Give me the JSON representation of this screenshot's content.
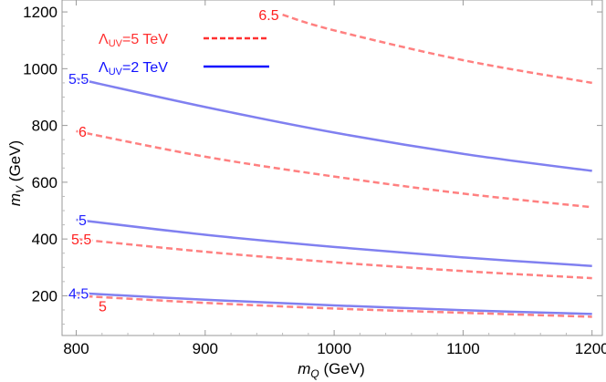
{
  "chart_data": {
    "type": "line",
    "title": "",
    "xlabel": "m_Q (GeV)",
    "ylabel": "m_V (GeV)",
    "xlim": [
      789,
      1208
    ],
    "ylim": [
      60,
      1242
    ],
    "xticks": [
      800,
      900,
      1000,
      1100,
      1200
    ],
    "yticks": [
      200,
      400,
      600,
      800,
      1000,
      1200
    ],
    "grid": false,
    "legend": {
      "placement": "top-left",
      "entries": [
        {
          "label_main": "Λ",
          "label_sub": "UV",
          "label_rest": "=5 TeV",
          "style": "dashed",
          "color": "#ff3030"
        },
        {
          "label_main": "Λ",
          "label_sub": "UV",
          "label_rest": "=2 TeV",
          "style": "solid",
          "color": "#1010ff"
        }
      ]
    },
    "series": [
      {
        "group": "Λ_UV=2 TeV",
        "contour_label": "5.5",
        "style": "solid",
        "color": "#8080f0",
        "label_color": "#2020ff",
        "x": [
          800,
          900,
          1000,
          1100,
          1200
        ],
        "y": [
          965,
          865,
          775,
          700,
          640
        ]
      },
      {
        "group": "Λ_UV=2 TeV",
        "contour_label": "5",
        "style": "solid",
        "color": "#8080f0",
        "label_color": "#2020ff",
        "x": [
          800,
          900,
          1000,
          1100,
          1200
        ],
        "y": [
          468,
          415,
          372,
          335,
          305
        ]
      },
      {
        "group": "Λ_UV=2 TeV",
        "contour_label": "4.5",
        "style": "solid",
        "color": "#8080f0",
        "label_color": "#2020ff",
        "x": [
          800,
          900,
          1000,
          1100,
          1200
        ],
        "y": [
          210,
          186,
          166,
          149,
          136
        ]
      },
      {
        "group": "Λ_UV=5 TeV",
        "contour_label": "6.5",
        "style": "dashed",
        "color": "#ff8080",
        "label_color": "#ff2020",
        "x": [
          960,
          1000,
          1100,
          1200
        ],
        "y": [
          1190,
          1135,
          1030,
          950
        ]
      },
      {
        "group": "Λ_UV=5 TeV",
        "contour_label": "6",
        "style": "dashed",
        "color": "#ff8080",
        "label_color": "#ff2020",
        "x": [
          800,
          900,
          1000,
          1100,
          1200
        ],
        "y": [
          780,
          690,
          620,
          560,
          512
        ]
      },
      {
        "group": "Λ_UV=5 TeV",
        "contour_label": "5.5",
        "style": "dashed",
        "color": "#ff8080",
        "label_color": "#ff2020",
        "x": [
          800,
          900,
          1000,
          1100,
          1200
        ],
        "y": [
          400,
          355,
          318,
          287,
          262
        ]
      },
      {
        "group": "Λ_UV=5 TeV",
        "contour_label": "5",
        "style": "dashed",
        "color": "#ff8080",
        "label_color": "#ff2020",
        "x": [
          800,
          900,
          1000,
          1100,
          1200
        ],
        "y": [
          200,
          175,
          155,
          140,
          126
        ]
      }
    ]
  }
}
